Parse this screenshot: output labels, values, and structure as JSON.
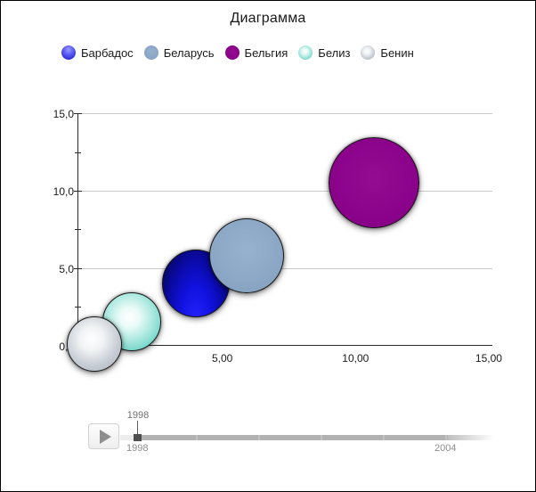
{
  "title": "Диаграмма",
  "legend": {
    "items": [
      {
        "label": "Барбадос",
        "swatch": "glossy-blue",
        "color": "#3434dd"
      },
      {
        "label": "Беларусь",
        "swatch": "steel",
        "color": "#8ca8c6"
      },
      {
        "label": "Бельгия",
        "swatch": "purple",
        "color": "#8a028a"
      },
      {
        "label": "Белиз",
        "swatch": "aqua",
        "color": "#66d0c4"
      },
      {
        "label": "Бенин",
        "swatch": "silver",
        "color": "#c6ccd4"
      }
    ]
  },
  "chart_data": {
    "type": "scatter",
    "variant": "bubble",
    "title": "Диаграмма",
    "grid": true,
    "x_axis": {
      "range": [
        0,
        15
      ],
      "tick_values": [
        0,
        5,
        10,
        15
      ],
      "tick_labels": [
        "0,00",
        "5,00",
        "10,00",
        "15,00"
      ]
    },
    "y_axis": {
      "range": [
        0,
        15
      ],
      "tick_values": [
        0,
        5,
        10,
        15
      ],
      "tick_labels": [
        "0,0",
        "5,0",
        "10,0",
        "15,0"
      ],
      "minor_tick_values": [
        2.5,
        7.5,
        12.5
      ]
    },
    "series": [
      {
        "name": "Барбадос",
        "x": 4.0,
        "y": 4.0,
        "radius_px": 38,
        "gradient": "navy",
        "color": "#0a0aa6"
      },
      {
        "name": "Беларусь",
        "x": 5.9,
        "y": 5.8,
        "radius_px": 42,
        "gradient": "steel",
        "color": "#8ca8c6"
      },
      {
        "name": "Бельгия",
        "x": 10.7,
        "y": 10.5,
        "radius_px": 51,
        "gradient": "purple",
        "color": "#8a028a"
      },
      {
        "name": "Белиз",
        "x": 1.6,
        "y": 1.5,
        "radius_px": 33,
        "gradient": "aqua",
        "color": "#66d0c4"
      },
      {
        "name": "Бенин",
        "x": 0.2,
        "y": 0.1,
        "radius_px": 31,
        "gradient": "silver",
        "color": "#c6ccd4"
      }
    ]
  },
  "timeline": {
    "tooltip": "1998",
    "start_label": "1998",
    "end_label": "2004",
    "play_icon": "play-triangle",
    "track_color": "#b2b2b2",
    "handle_color": "#4f4f4f"
  }
}
